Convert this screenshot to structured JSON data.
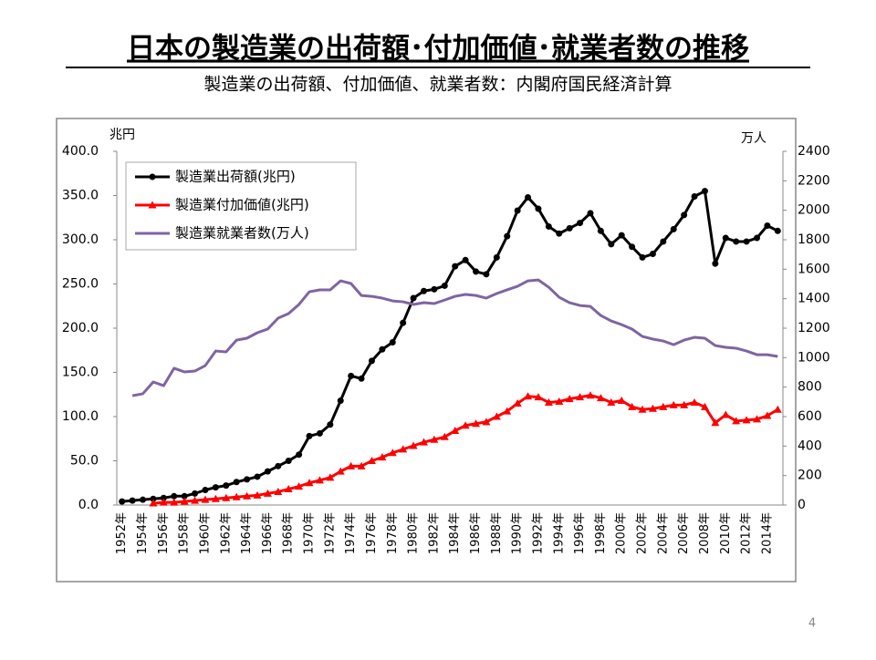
{
  "title": "日本の製造業の出荷額･付加価値･就業者数の推移",
  "subtitle": "製造業の出荷額、付加価値、就業者数：内閣府国民経済計算",
  "page_number": "4",
  "chart_data": {
    "type": "line",
    "y_label": "兆円",
    "y2_label": "万人",
    "legend": "upper left",
    "categories": [
      "1952年",
      null,
      "1954年",
      null,
      "1956年",
      null,
      "1958年",
      null,
      "1960年",
      null,
      "1962年",
      null,
      "1964年",
      null,
      "1966年",
      null,
      "1968年",
      null,
      "1970年",
      null,
      "1972年",
      null,
      "1974年",
      null,
      "1976年",
      null,
      "1978年",
      null,
      "1980年",
      null,
      "1982年",
      null,
      "1984年",
      null,
      "1986年",
      null,
      "1988年",
      null,
      "1990年",
      null,
      "1992年",
      null,
      "1994年",
      null,
      "1996年",
      null,
      "1998年",
      null,
      "2000年",
      null,
      "2002年",
      null,
      "2004年",
      null,
      "2006年",
      null,
      "2008年",
      null,
      "2010年",
      null,
      "2012年",
      null,
      "2014年",
      null
    ],
    "ylim": [
      0,
      400
    ],
    "yticks": [
      {
        "value": 0,
        "label": "0.0"
      },
      {
        "value": 50,
        "label": "50.0"
      },
      {
        "value": 100,
        "label": "100.0"
      },
      {
        "value": 150,
        "label": "150.0"
      },
      {
        "value": 200,
        "label": "200.0"
      },
      {
        "value": 250,
        "label": "250.0"
      },
      {
        "value": 300,
        "label": "300.0"
      },
      {
        "value": 350,
        "label": "350.0"
      },
      {
        "value": 400,
        "label": "400.0"
      }
    ],
    "y2lim": [
      0,
      2400
    ],
    "y2ticks": [
      0,
      200,
      400,
      600,
      800,
      1000,
      1200,
      1400,
      1600,
      1800,
      2000,
      2200,
      2400
    ],
    "series": [
      {
        "name": "製造業出荷額(兆円)",
        "color": "#000000",
        "marker": "circle",
        "values": [
          4,
          5,
          6,
          7,
          8,
          10,
          10,
          13,
          17,
          20,
          22,
          26,
          29,
          32,
          38,
          44,
          50,
          57,
          78,
          81,
          91,
          118,
          146,
          143,
          163,
          176,
          184,
          206,
          234,
          242,
          244,
          248,
          270,
          277,
          264,
          261,
          280,
          304,
          333,
          348,
          335,
          315,
          307,
          313,
          319,
          330,
          310,
          295,
          305,
          292,
          280,
          284,
          298,
          312,
          328,
          349,
          355,
          273,
          302,
          298,
          298,
          302,
          316,
          310
        ]
      },
      {
        "name": "製造業付加価値(兆円)",
        "color": "#ff0000",
        "marker": "triangle",
        "values": [
          null,
          null,
          null,
          2,
          3,
          3,
          4,
          5,
          6,
          7,
          8,
          9,
          10,
          11,
          13,
          15,
          18,
          21,
          25,
          28,
          31,
          38,
          44,
          44,
          50,
          54,
          59,
          63,
          67,
          71,
          74,
          77,
          84,
          90,
          92,
          94,
          100,
          106,
          115,
          123,
          122,
          116,
          117,
          120,
          122,
          124,
          121,
          116,
          118,
          111,
          108,
          109,
          111,
          113,
          113,
          116,
          111,
          93,
          102,
          95,
          96,
          97,
          101,
          108
        ]
      },
      {
        "name": "製造業就業者数(万人)",
        "color": "#8064a2",
        "axis": "y2",
        "values": [
          null,
          742,
          755,
          835,
          810,
          928,
          903,
          909,
          946,
          1045,
          1039,
          1119,
          1132,
          1169,
          1194,
          1268,
          1299,
          1361,
          1447,
          1460,
          1460,
          1521,
          1503,
          1422,
          1416,
          1404,
          1385,
          1379,
          1361,
          1373,
          1367,
          1391,
          1416,
          1429,
          1422,
          1404,
          1435,
          1460,
          1484,
          1521,
          1527,
          1478,
          1410,
          1373,
          1354,
          1348,
          1286,
          1249,
          1224,
          1194,
          1144,
          1126,
          1113,
          1088,
          1119,
          1138,
          1132,
          1082,
          1070,
          1064,
          1045,
          1020,
          1020,
          1008
        ]
      }
    ]
  }
}
